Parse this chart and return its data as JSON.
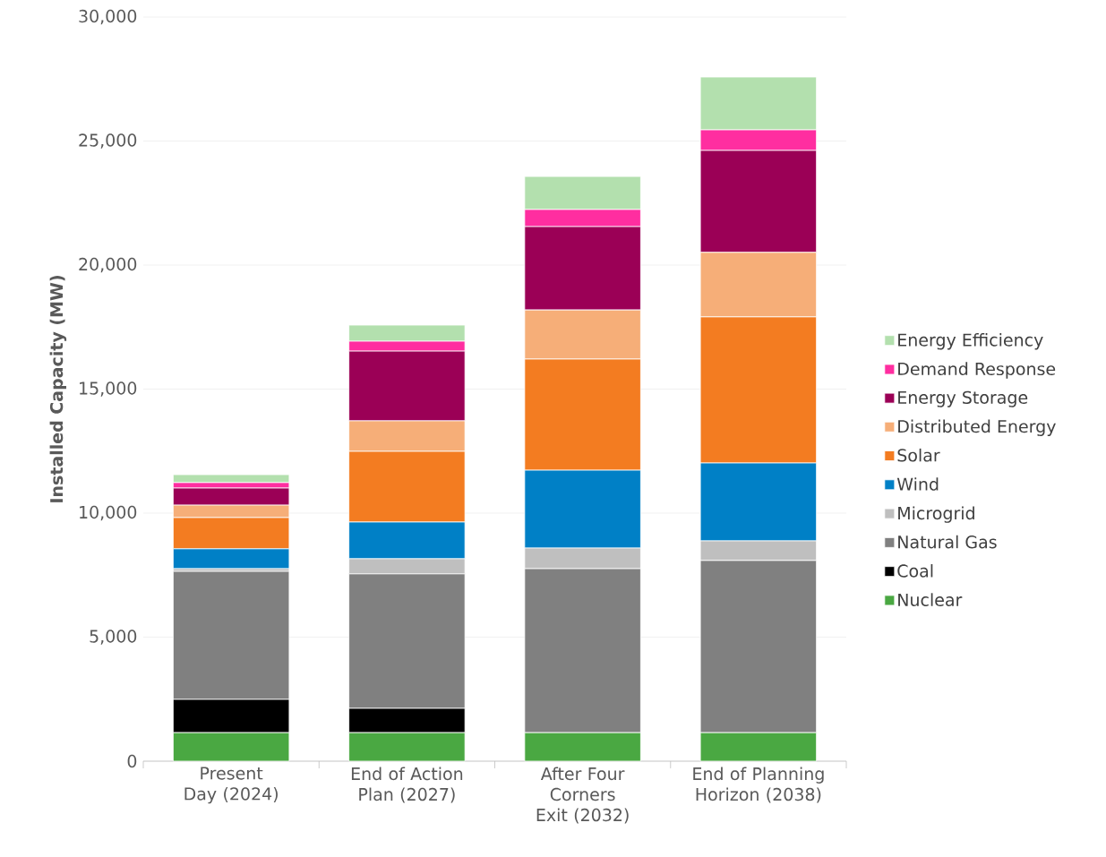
{
  "chart_data": {
    "type": "bar",
    "stacked": true,
    "ylabel": "Installed Capacity (MW)",
    "categories": [
      "Present Day (2024)",
      "End of Action Plan (2027)",
      "After Four Corners Exit (2032)",
      "End of Planning Horizon (2038)"
    ],
    "series": [
      {
        "name": "Nuclear",
        "color": "#4aa842",
        "values": [
          1150,
          1150,
          1150,
          1150
        ]
      },
      {
        "name": "Coal",
        "color": "#000000",
        "values": [
          1340,
          980,
          0,
          0
        ]
      },
      {
        "name": "Natural Gas",
        "color": "#808080",
        "values": [
          5160,
          5420,
          6610,
          6940
        ]
      },
      {
        "name": "Microgrid",
        "color": "#bfbfbf",
        "values": [
          110,
          610,
          830,
          790
        ]
      },
      {
        "name": "Wind",
        "color": "#0080c6",
        "values": [
          800,
          1480,
          3140,
          3140
        ]
      },
      {
        "name": "Solar",
        "color": "#f37c21",
        "values": [
          1260,
          2850,
          4480,
          5890
        ]
      },
      {
        "name": "Distributed Energy",
        "color": "#f6ae78",
        "values": [
          500,
          1230,
          1980,
          2600
        ]
      },
      {
        "name": "Energy Storage",
        "color": "#9b0056",
        "values": [
          690,
          2810,
          3360,
          4110
        ]
      },
      {
        "name": "Demand Response",
        "color": "#ff2ea0",
        "values": [
          220,
          400,
          690,
          830
        ]
      },
      {
        "name": "Energy Efficiency",
        "color": "#b3e0ae",
        "values": [
          320,
          650,
          1330,
          2130
        ]
      }
    ],
    "ylim": [
      0,
      30000
    ],
    "yticks": [
      0,
      {
        "value": 5000,
        "label": "5,000"
      },
      {
        "value": 10000,
        "label": "10,000"
      },
      {
        "value": 15000,
        "label": "15,000"
      },
      {
        "value": 20000,
        "label": "20,000"
      },
      {
        "value": 25000,
        "label": "25,000"
      },
      {
        "value": 30000,
        "label": "30,000"
      }
    ],
    "grid": "y",
    "legend": "right"
  }
}
